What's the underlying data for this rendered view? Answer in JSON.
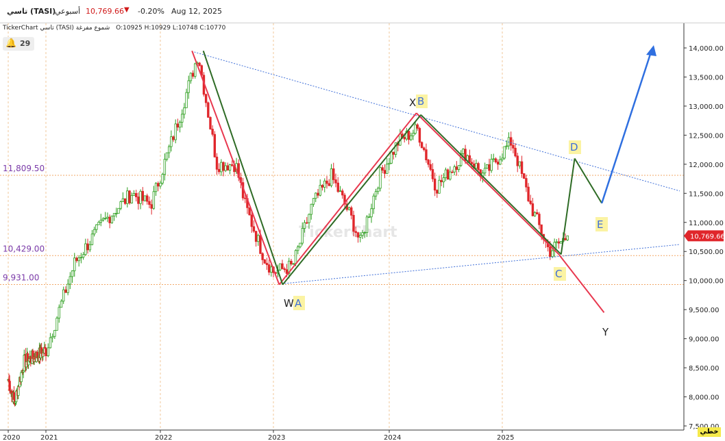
{
  "header": {
    "name": "تاسي (TASI)",
    "interval": "أسبوعي",
    "last": "10,769.66",
    "change_pct": "-0.20%",
    "date": "Aug 12, 2025"
  },
  "infobar": {
    "source": "TickerChart تاسي (TASI) شموع مفرغة",
    "ohlc": "O:10925  H:10929  L:10748  C:10770"
  },
  "alert_count": "29",
  "watermark": "TickerChart",
  "footer_label": "خطي",
  "colors": {
    "up": "#2a9d1c",
    "down": "#e0262b",
    "red_line": "#e8384f",
    "green_line": "#2e6b25",
    "blue_arrow": "#2f6fe0",
    "trend": "#3f6fd8",
    "level": "#f2a766",
    "label_bg": "#fbf3a3"
  },
  "chart_data": {
    "type": "candlestick",
    "x_ticks": [
      "2020",
      "2021",
      "2022",
      "2023",
      "2024",
      "2025"
    ],
    "y_ticks": [
      "14,000.00",
      "13,500.00",
      "13,000.00",
      "12,500.00",
      "12,000.00",
      "11,500.00",
      "11,000.00",
      "10,500.00",
      "10,000.00",
      "9,500.00",
      "9,000.00",
      "8,500.00",
      "8,000.00",
      "7,500.00"
    ],
    "ylim": [
      7450,
      14200
    ],
    "last_price": "10,769.66",
    "levels": [
      {
        "label": "11,809.50",
        "value": 11809.5
      },
      {
        "label": "10,429.00",
        "value": 10429
      },
      {
        "label": "9,931.00",
        "value": 9931
      }
    ],
    "series_keypoints": [
      {
        "date": "2020-01",
        "close": 8300
      },
      {
        "date": "2020-03",
        "close": 7900
      },
      {
        "date": "2020-06",
        "close": 8600
      },
      {
        "date": "2020-10",
        "close": 8700
      },
      {
        "date": "2021-01",
        "close": 8800
      },
      {
        "date": "2021-04",
        "close": 10300
      },
      {
        "date": "2021-07",
        "close": 11000
      },
      {
        "date": "2021-10",
        "close": 11500
      },
      {
        "date": "2021-12",
        "close": 11300
      },
      {
        "date": "2022-03",
        "close": 12800
      },
      {
        "date": "2022-05",
        "close": 13900
      },
      {
        "date": "2022-07",
        "close": 12000
      },
      {
        "date": "2022-09",
        "close": 12000
      },
      {
        "date": "2022-10",
        "close": 11300
      },
      {
        "date": "2022-12",
        "close": 10400
      },
      {
        "date": "2023-01",
        "close": 10150
      },
      {
        "date": "2023-03",
        "close": 10250
      },
      {
        "date": "2023-05",
        "close": 11300
      },
      {
        "date": "2023-07",
        "close": 11800
      },
      {
        "date": "2023-09",
        "close": 11100
      },
      {
        "date": "2023-10",
        "close": 10650
      },
      {
        "date": "2023-12",
        "close": 11800
      },
      {
        "date": "2024-02",
        "close": 12400
      },
      {
        "date": "2024-04",
        "close": 12600
      },
      {
        "date": "2024-06",
        "close": 11600
      },
      {
        "date": "2024-09",
        "close": 12200
      },
      {
        "date": "2024-11",
        "close": 11800
      },
      {
        "date": "2025-02",
        "close": 12400
      },
      {
        "date": "2025-04",
        "close": 11300
      },
      {
        "date": "2025-06",
        "close": 10500
      },
      {
        "date": "2025-08",
        "close": 10770
      }
    ],
    "wave_labels": [
      "W",
      "A",
      "X",
      "B",
      "C",
      "D",
      "E",
      "Y"
    ]
  }
}
